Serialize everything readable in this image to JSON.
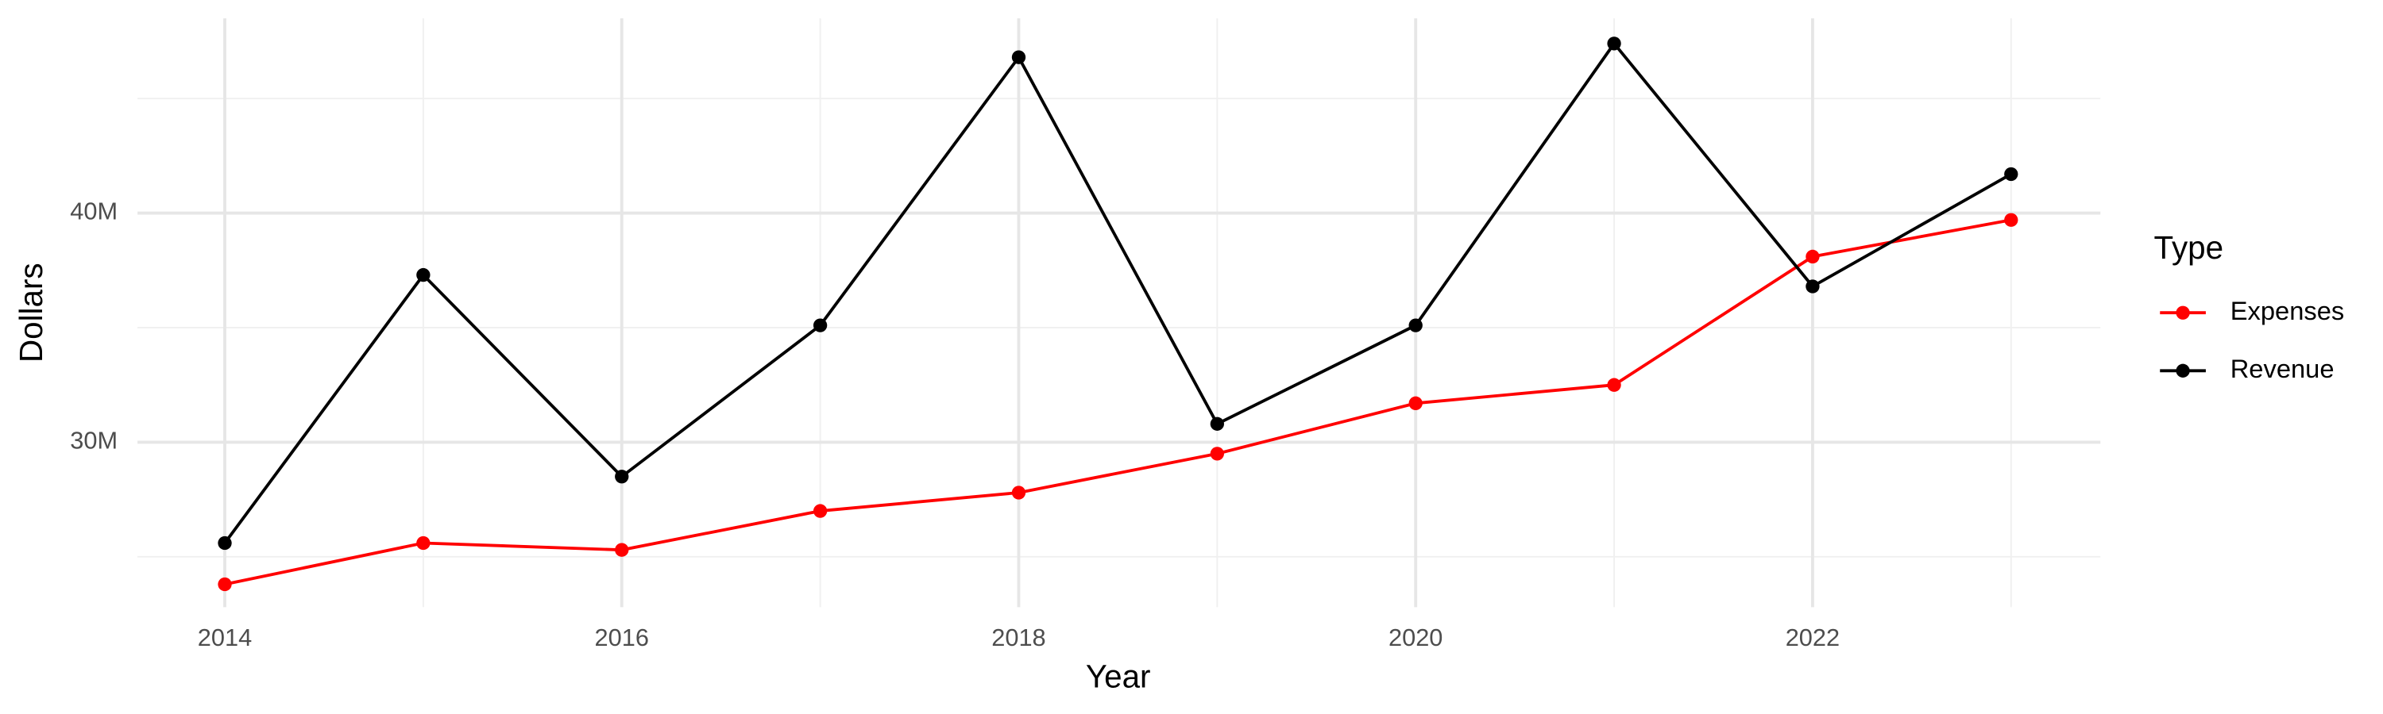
{
  "chart_data": {
    "type": "line",
    "x_label": "Year",
    "y_label": "Dollars",
    "legend_title": "Type",
    "legend_position": "right",
    "x": [
      2014,
      2015,
      2016,
      2017,
      2018,
      2019,
      2020,
      2021,
      2022,
      2023
    ],
    "series": [
      {
        "name": "Expenses",
        "color": "#ff0000",
        "values": [
          23800000,
          25600000,
          25300000,
          27000000,
          27800000,
          29500000,
          31700000,
          32500000,
          38100000,
          39700000
        ]
      },
      {
        "name": "Revenue",
        "color": "#000000",
        "values": [
          25600000,
          37300000,
          28500000,
          35100000,
          46800000,
          30800000,
          35100000,
          47400000,
          36800000,
          41700000
        ]
      }
    ],
    "xlim": [
      2013.56,
      2023.45
    ],
    "xticks": [
      2014,
      2016,
      2018,
      2020,
      2022
    ],
    "xminorticks": [
      2015,
      2017,
      2019,
      2021,
      2023
    ],
    "ylim": [
      22800000,
      48500000
    ],
    "yticks": [
      {
        "value": 30000000,
        "label": "30M"
      },
      {
        "value": 40000000,
        "label": "40M"
      }
    ],
    "yminorticks": [
      25000000,
      35000000,
      45000000
    ],
    "grid": true
  }
}
